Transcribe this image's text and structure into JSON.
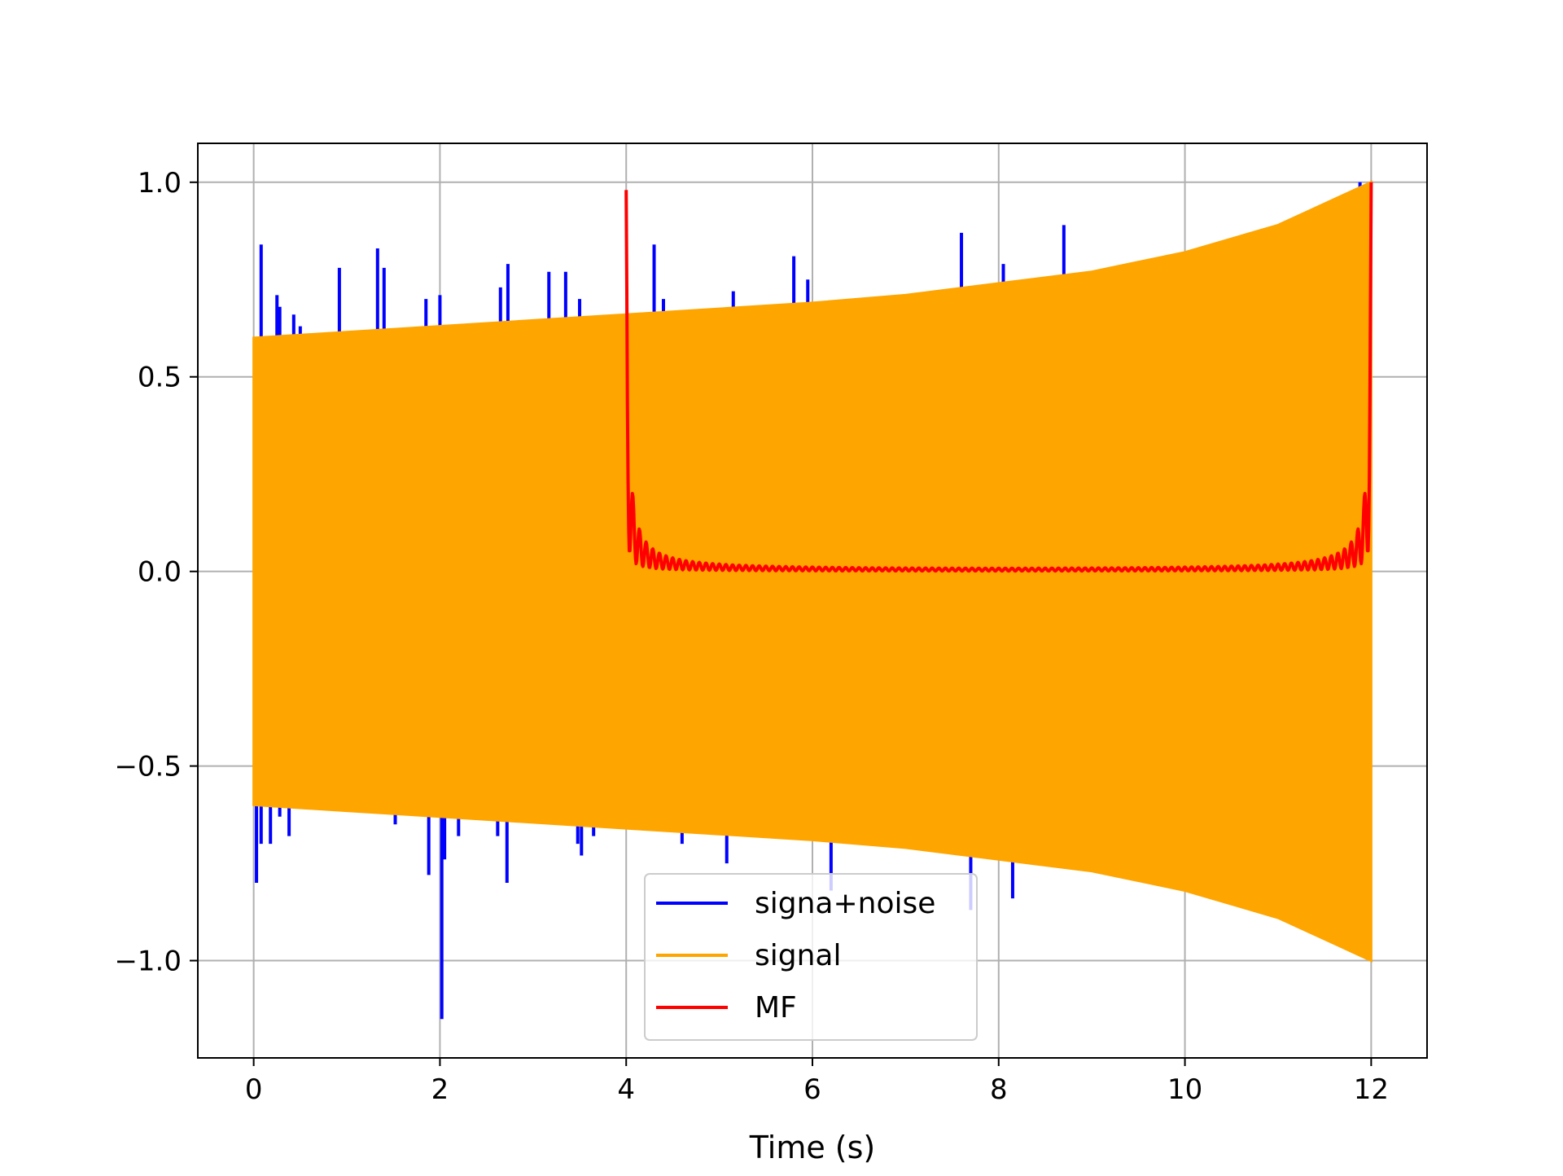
{
  "chart_data": {
    "type": "line",
    "xlabel": "Time (s)",
    "ylabel": "",
    "xlim": [
      -0.6,
      12.6
    ],
    "ylim": [
      -1.25,
      1.1
    ],
    "xticks": [
      0,
      2,
      4,
      6,
      8,
      10,
      12
    ],
    "xtick_labels": [
      "0",
      "2",
      "4",
      "6",
      "8",
      "10",
      "12"
    ],
    "yticks": [
      -1.0,
      -0.5,
      0.0,
      0.5,
      1.0
    ],
    "ytick_labels": [
      "−1.0",
      "−0.5",
      "0.0",
      "0.5",
      "1.0"
    ],
    "grid": true,
    "legend_position": "lower-center",
    "series": [
      {
        "name": "signa+noise",
        "color": "#0000ff",
        "spikes_up": [
          [
            0.08,
            0.84
          ],
          [
            0.25,
            0.71
          ],
          [
            0.28,
            0.68
          ],
          [
            0.43,
            0.66
          ],
          [
            0.5,
            0.63
          ],
          [
            0.92,
            0.78
          ],
          [
            1.33,
            0.83
          ],
          [
            1.4,
            0.78
          ],
          [
            1.85,
            0.7
          ],
          [
            2.0,
            0.71
          ],
          [
            2.65,
            0.73
          ],
          [
            2.73,
            0.79
          ],
          [
            3.17,
            0.77
          ],
          [
            3.35,
            0.77
          ],
          [
            3.5,
            0.7
          ],
          [
            4.3,
            0.84
          ],
          [
            4.4,
            0.7
          ],
          [
            5.15,
            0.72
          ],
          [
            5.8,
            0.81
          ],
          [
            5.95,
            0.75
          ],
          [
            7.6,
            0.87
          ],
          [
            8.05,
            0.79
          ],
          [
            8.7,
            0.89
          ],
          [
            11.88,
            1.0
          ]
        ],
        "spikes_down": [
          [
            0.03,
            -0.8
          ],
          [
            0.08,
            -0.7
          ],
          [
            0.18,
            -0.7
          ],
          [
            0.28,
            -0.63
          ],
          [
            0.38,
            -0.68
          ],
          [
            1.52,
            -0.65
          ],
          [
            1.88,
            -0.78
          ],
          [
            2.02,
            -1.15
          ],
          [
            2.05,
            -0.74
          ],
          [
            2.2,
            -0.68
          ],
          [
            2.62,
            -0.68
          ],
          [
            2.72,
            -0.8
          ],
          [
            3.48,
            -0.7
          ],
          [
            3.52,
            -0.73
          ],
          [
            3.65,
            -0.68
          ],
          [
            4.6,
            -0.7
          ],
          [
            5.08,
            -0.75
          ],
          [
            6.2,
            -0.82
          ],
          [
            7.7,
            -0.87
          ],
          [
            8.15,
            -0.84
          ]
        ]
      },
      {
        "name": "signal",
        "color": "#ffa500",
        "x_start": 0,
        "x_end": 12,
        "envelope": [
          [
            0,
            0.6
          ],
          [
            1,
            0.615
          ],
          [
            2,
            0.63
          ],
          [
            3,
            0.645
          ],
          [
            4,
            0.66
          ],
          [
            5,
            0.675
          ],
          [
            6,
            0.69
          ],
          [
            7,
            0.71
          ],
          [
            8,
            0.74
          ],
          [
            9,
            0.77
          ],
          [
            10,
            0.82
          ],
          [
            11,
            0.89
          ],
          [
            12,
            1.0
          ]
        ]
      },
      {
        "name": "MF",
        "color": "#ff0000",
        "x_start": 4,
        "x_end": 12,
        "start_value": 0.98,
        "end_value": 1.0,
        "baseline": 0.0
      }
    ]
  }
}
